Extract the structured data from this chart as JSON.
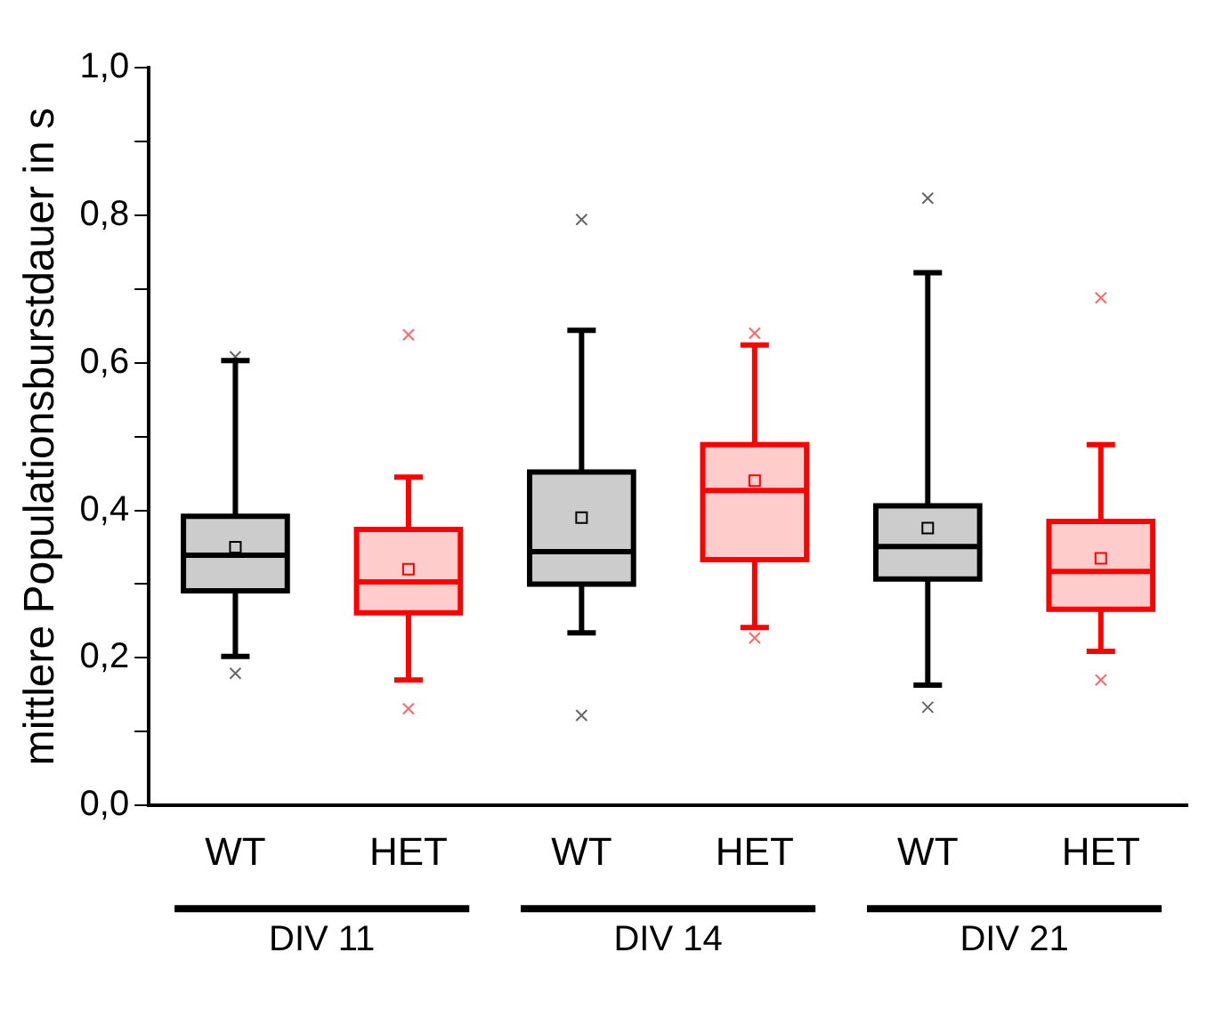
{
  "chart_data": {
    "type": "box",
    "ylabel": "mittlere Populationsburstdauer in s",
    "categories": [
      "WT",
      "HET",
      "WT",
      "HET",
      "WT",
      "HET"
    ],
    "colors": [
      "#000000",
      "#ff0000",
      "#000000",
      "#ff0000",
      "#000000",
      "#ff0000"
    ],
    "boxes": [
      {
        "low": 0.202,
        "q1": 0.291,
        "median": 0.339,
        "q3": 0.392,
        "high": 0.603,
        "mean": 0.35,
        "outliers": [
          0.608,
          0.179
        ]
      },
      {
        "low": 0.17,
        "q1": 0.261,
        "median": 0.303,
        "q3": 0.374,
        "high": 0.445,
        "mean": 0.32,
        "outliers": [
          0.638,
          0.131
        ]
      },
      {
        "low": 0.234,
        "q1": 0.3,
        "median": 0.344,
        "q3": 0.452,
        "high": 0.644,
        "mean": 0.39,
        "outliers": [
          0.794,
          0.122
        ]
      },
      {
        "low": 0.241,
        "q1": 0.333,
        "median": 0.427,
        "q3": 0.489,
        "high": 0.624,
        "mean": 0.44,
        "outliers": [
          0.64,
          0.227
        ]
      },
      {
        "low": 0.163,
        "q1": 0.307,
        "median": 0.351,
        "q3": 0.406,
        "high": 0.722,
        "mean": 0.376,
        "outliers": [
          0.823,
          0.133
        ]
      },
      {
        "low": 0.209,
        "q1": 0.266,
        "median": 0.317,
        "q3": 0.385,
        "high": 0.489,
        "mean": 0.335,
        "outliers": [
          0.688,
          0.17
        ]
      }
    ],
    "annotations": [
      "DIV 11",
      "DIV 14",
      "DIV 21"
    ],
    "ylim": [
      0,
      1
    ],
    "yticks": [
      {
        "value": 0,
        "label": "0,0"
      },
      {
        "value": 0.1,
        "label": null
      },
      {
        "value": 0.2,
        "label": "0,2"
      },
      {
        "value": 0.3,
        "label": null
      },
      {
        "value": 0.4,
        "label": "0,4"
      },
      {
        "value": 0.5,
        "label": null
      },
      {
        "value": 0.6,
        "label": "0,6"
      },
      {
        "value": 0.7,
        "label": null
      },
      {
        "value": 0.8,
        "label": "0,8"
      },
      {
        "value": 0.9,
        "label": null
      },
      {
        "value": 1,
        "label": "1,0"
      }
    ],
    "grid": false,
    "legend": false
  }
}
